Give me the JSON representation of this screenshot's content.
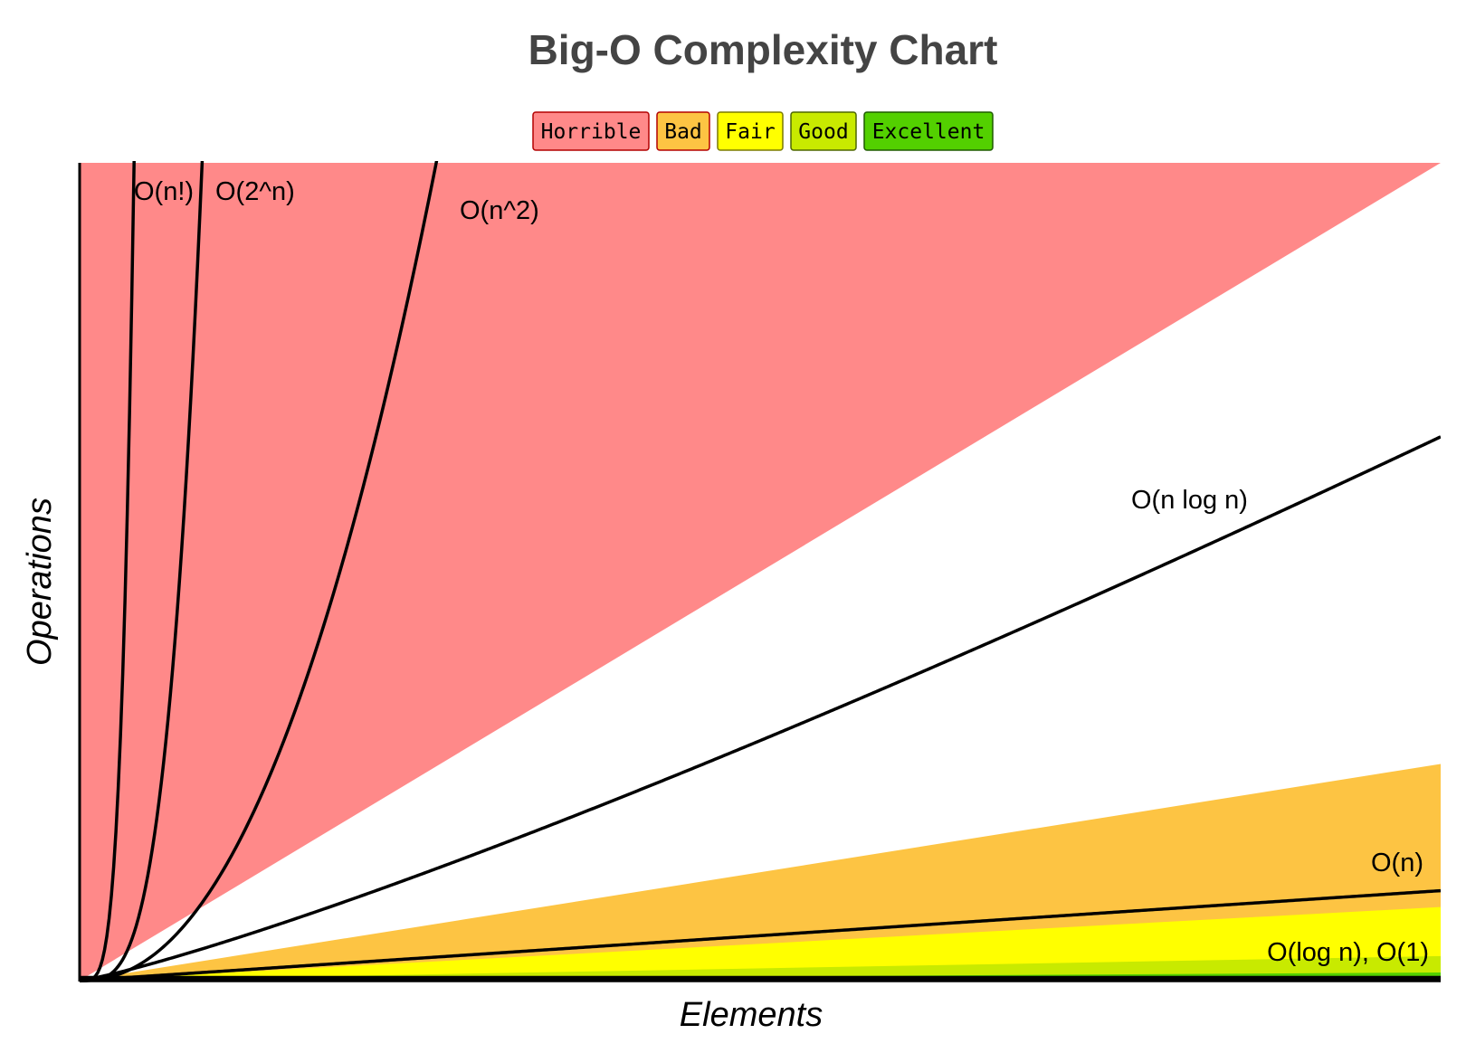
{
  "chart_data": {
    "type": "area",
    "title": "Big-O Complexity Chart",
    "xlabel": "Elements",
    "ylabel": "Operations",
    "xlim": [
      0,
      100
    ],
    "ylim": [
      0,
      1000
    ],
    "legend": {
      "placement": "top-center",
      "entries": [
        {
          "label": "Horrible",
          "color": "#ff8989",
          "border": "#b30000"
        },
        {
          "label": "Bad",
          "color": "#fdc443",
          "border": "#b30000"
        },
        {
          "label": "Fair",
          "color": "#ffff00",
          "border": "#7a7a00"
        },
        {
          "label": "Good",
          "color": "#c8ea00",
          "border": "#4d6600"
        },
        {
          "label": "Excellent",
          "color": "#53d000",
          "border": "#1e5a00"
        }
      ]
    },
    "regions": [
      {
        "name": "Horrible",
        "color": "#ff8989",
        "boundary": [
          [
            0,
            0
          ],
          [
            100,
            1000
          ]
        ]
      },
      {
        "name": "Bad",
        "color": "#fdc443",
        "boundary": [
          [
            0,
            0
          ],
          [
            100,
            265
          ]
        ]
      },
      {
        "name": "Fair",
        "color": "#ffff00",
        "boundary": [
          [
            0,
            0
          ],
          [
            100,
            90
          ]
        ]
      },
      {
        "name": "Good",
        "color": "#c8ea00",
        "boundary": [
          [
            0,
            0
          ],
          [
            100,
            30
          ]
        ]
      },
      {
        "name": "Excellent",
        "color": "#53d000",
        "boundary": [
          [
            0,
            0
          ],
          [
            100,
            10
          ]
        ]
      }
    ],
    "series": [
      {
        "name": "O(n!)",
        "function": "factorial"
      },
      {
        "name": "O(2^n)",
        "function": "exp2"
      },
      {
        "name": "O(n^2)",
        "function": "square"
      },
      {
        "name": "O(n log n)",
        "function": "nlogn"
      },
      {
        "name": "O(n)",
        "function": "linear"
      },
      {
        "name": "O(log n), O(1)",
        "function": "log_and_constant"
      }
    ]
  }
}
